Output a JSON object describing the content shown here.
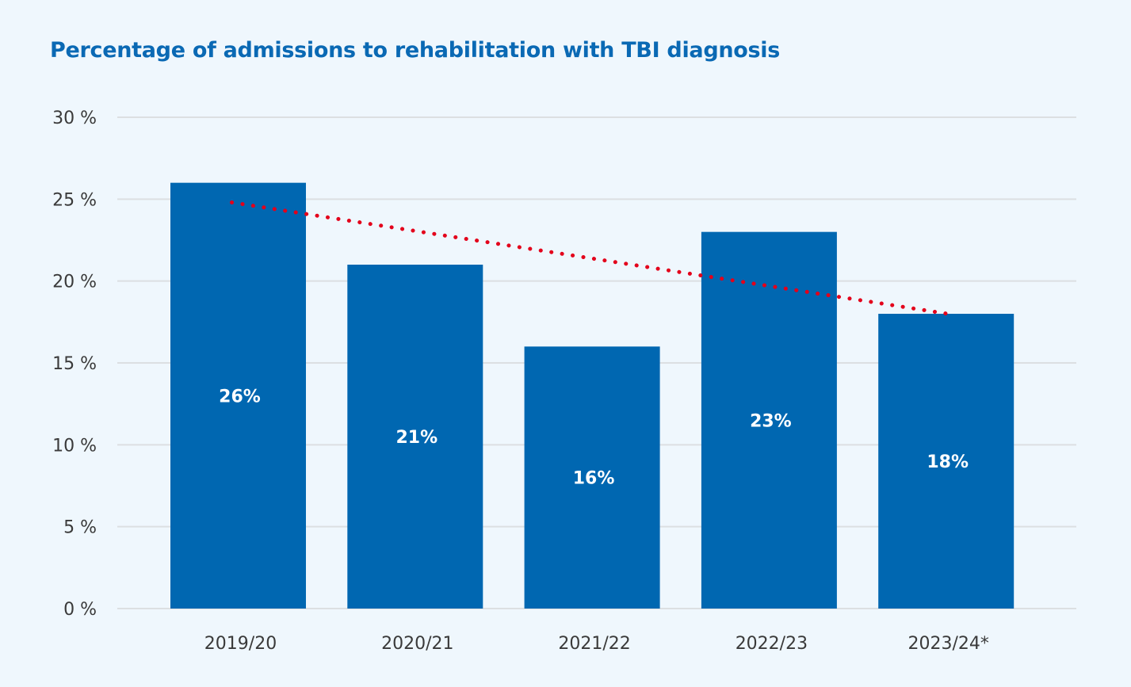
{
  "chart_data": {
    "type": "bar",
    "title": "Percentage of admissions to rehabilitation with TBI diagnosis",
    "categories": [
      "2019/20",
      "2020/21",
      "2021/22",
      "2022/23",
      "2023/24*"
    ],
    "values": [
      26,
      21,
      16,
      23,
      18
    ],
    "data_labels": [
      "26%",
      "21%",
      "16%",
      "23%",
      "18%"
    ],
    "ylim": [
      0,
      30
    ],
    "yticks": [
      0,
      5,
      10,
      15,
      20,
      25,
      30
    ],
    "ytick_labels": [
      "0 %",
      "5 %",
      "10 %",
      "15 %",
      "20 %",
      "25 %",
      "30 %"
    ],
    "grid": true,
    "trendline": {
      "style": "dotted",
      "start": 24.8,
      "end": 18.0
    },
    "colors": {
      "bar": "#0067b1",
      "trendline": "#e3001b",
      "grid": "#dcdfe2",
      "title": "#0a69b4",
      "background": "#eff7fd"
    }
  }
}
